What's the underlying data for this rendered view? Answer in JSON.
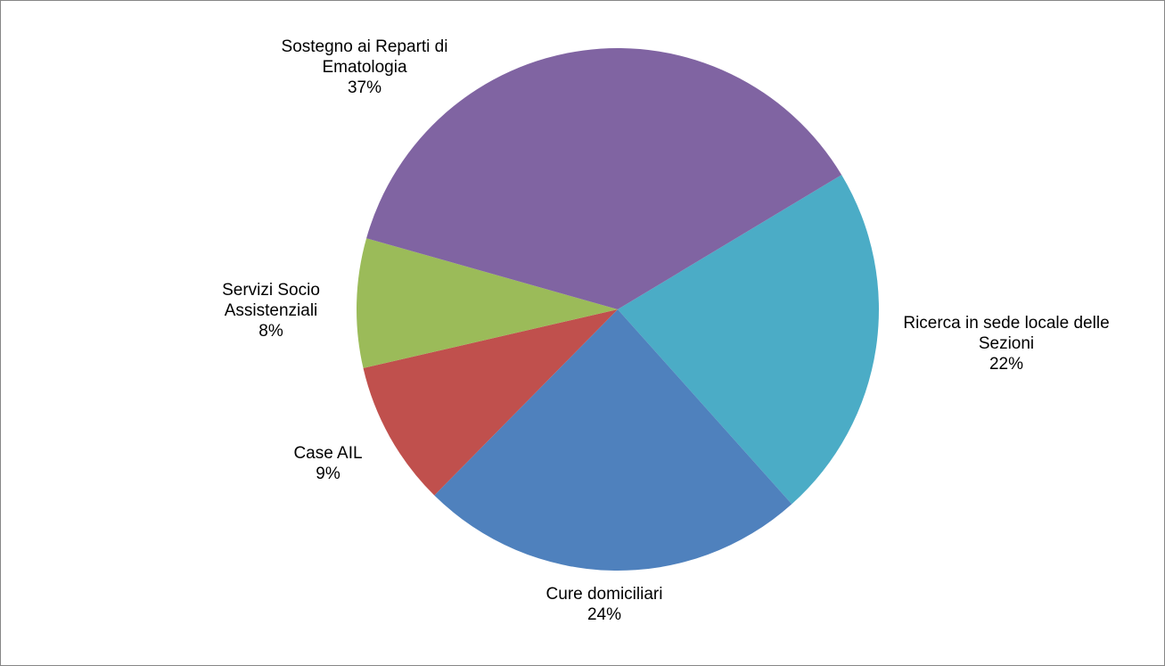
{
  "chart_data": {
    "type": "pie",
    "categories": [
      "Ricerca in sede locale delle Sezioni",
      "Cure domiciliari",
      "Case AIL",
      "Servizi Socio Assistenziali",
      "Sostegno ai Reparti di Ematologia"
    ],
    "values": [
      22,
      24,
      9,
      8,
      37
    ],
    "value_labels": [
      "22%",
      "24%",
      "9%",
      "8%",
      "37%"
    ],
    "colors": [
      "#4bacc6",
      "#4f81bd",
      "#c0504d",
      "#9bbb59",
      "#8064a2"
    ]
  }
}
